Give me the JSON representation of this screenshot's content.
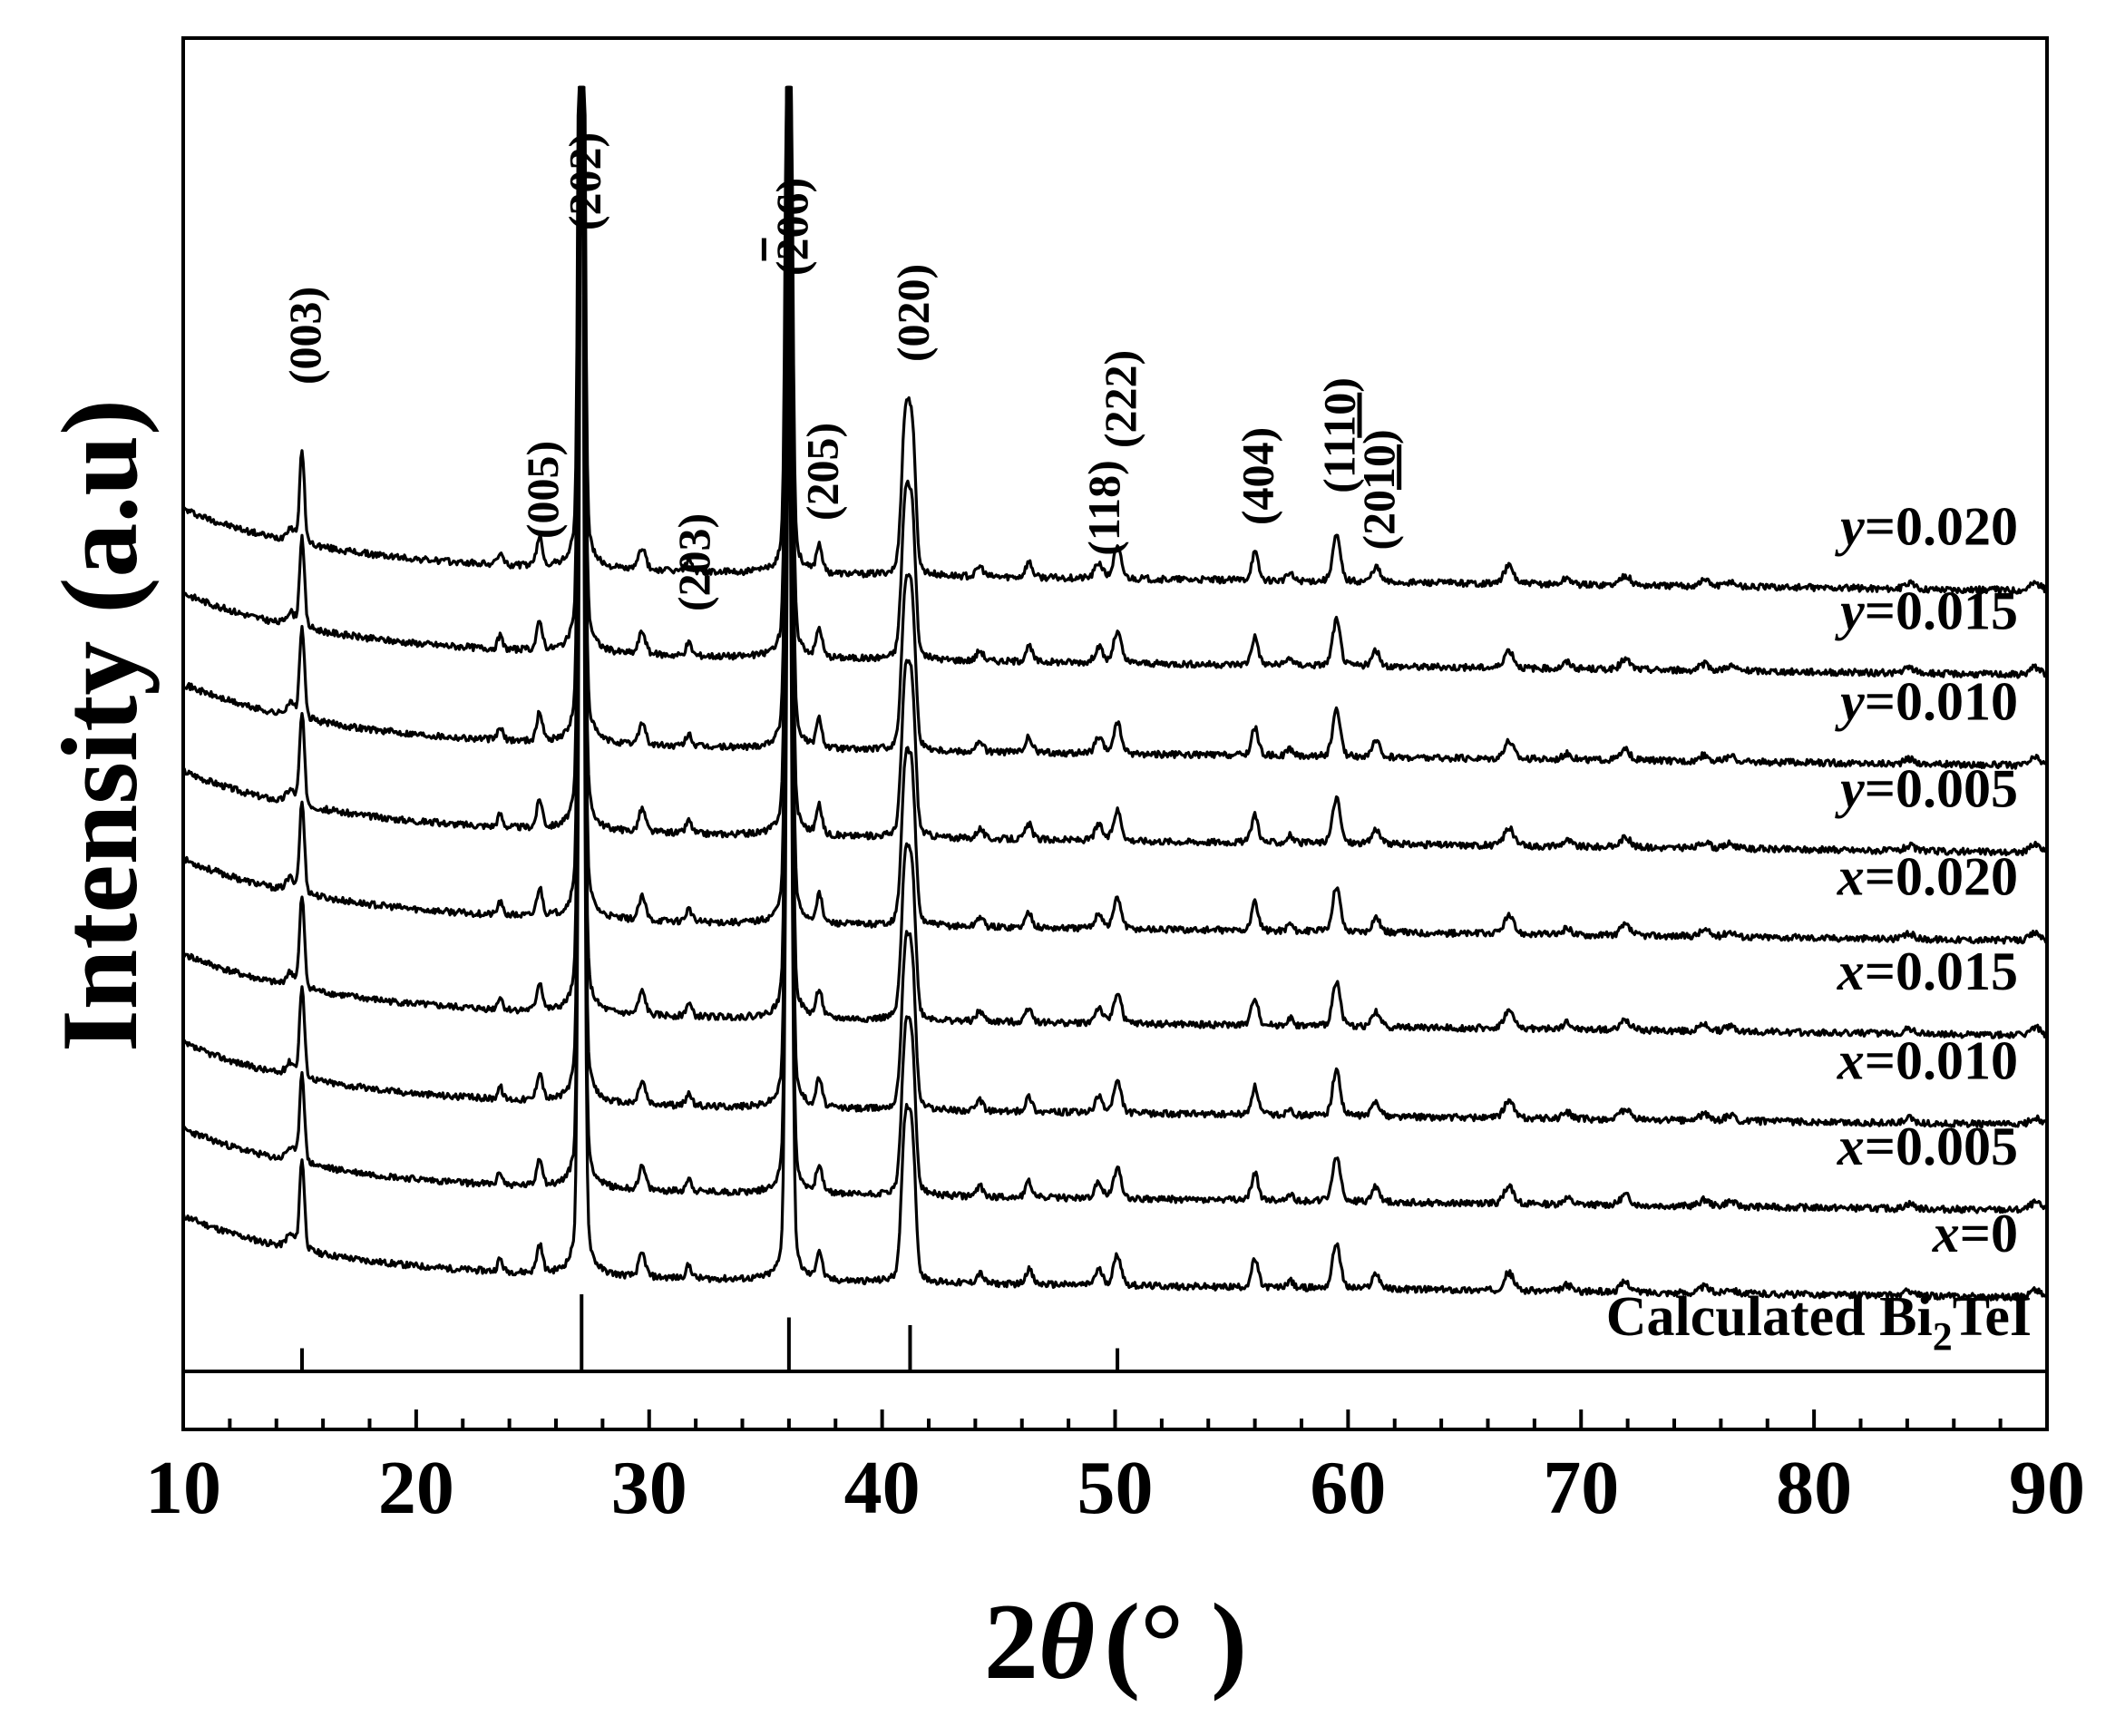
{
  "chart_data": {
    "type": "line",
    "title": "",
    "xlabel": {
      "prefix": "2",
      "symbol": "θ",
      "unit": "(° )"
    },
    "ylabel": "Intensity (a.u)",
    "xlim": [
      10,
      90
    ],
    "x_ticks": [
      "10",
      "20",
      "30",
      "40",
      "50",
      "60",
      "70",
      "80",
      "90"
    ],
    "y_ticks_shown": false,
    "grid": false,
    "reflections": [
      {
        "label": "(003)",
        "two_theta": 15.1
      },
      {
        "label": "(005)",
        "two_theta": 25.3
      },
      {
        "label": "(202)",
        "two_theta": 27.1
      },
      {
        "label": "(203)",
        "two_theta": 31.8
      },
      {
        "label": "(205)",
        "two_theta": 37.3
      },
      {
        "label": "(",
        "overbar": "2",
        "rest": "06)",
        "two_theta": 36.0
      },
      {
        "label": "(020)",
        "two_theta": 41.2
      },
      {
        "label": "(118)",
        "two_theta": 49.4
      },
      {
        "label": "(222)",
        "two_theta": 50.1
      },
      {
        "label": "(404)",
        "two_theta": 56.0
      },
      {
        "label": "(11",
        "underbar": "10",
        "rest": ")",
        "two_theta": 59.5
      },
      {
        "label": "(20",
        "underbar": "10",
        "rest": ")",
        "two_theta": 61.2
      }
    ],
    "reference": {
      "name_prefix": "Calculated Bi",
      "subscript": "2",
      "name_suffix": "TeI",
      "sticks": [
        {
          "two_theta": 15.1,
          "rel_intensity": 0.3
        },
        {
          "two_theta": 27.1,
          "rel_intensity": 1.0
        },
        {
          "two_theta": 36.0,
          "rel_intensity": 0.7
        },
        {
          "two_theta": 41.2,
          "rel_intensity": 0.6
        },
        {
          "two_theta": 50.1,
          "rel_intensity": 0.3
        }
      ]
    },
    "series": [
      {
        "var": "x",
        "value": "=0",
        "baseline": 0.075,
        "seed": 11
      },
      {
        "var": "x",
        "value": "=0.005",
        "baseline": 0.142,
        "seed": 23
      },
      {
        "var": "x",
        "value": "=0.010",
        "baseline": 0.208,
        "seed": 37
      },
      {
        "var": "x",
        "value": "=0.015",
        "baseline": 0.277,
        "seed": 41
      },
      {
        "var": "x",
        "value": "=0.020",
        "baseline": 0.35,
        "seed": 53
      },
      {
        "var": "y",
        "value": "=0.005",
        "baseline": 0.418,
        "seed": 67
      },
      {
        "var": "y",
        "value": "=0.010",
        "baseline": 0.485,
        "seed": 71
      },
      {
        "var": "y",
        "value": "=0.015",
        "baseline": 0.555,
        "seed": 83
      },
      {
        "var": "y",
        "value": "=0.020",
        "baseline": 0.62,
        "seed": 97
      }
    ],
    "peak_profile": [
      {
        "two_theta": 14.6,
        "height": 0.01,
        "width": 0.18
      },
      {
        "two_theta": 15.1,
        "height": 0.072,
        "width": 0.1
      },
      {
        "two_theta": 23.6,
        "height": 0.01,
        "width": 0.1
      },
      {
        "two_theta": 25.3,
        "height": 0.022,
        "width": 0.12
      },
      {
        "two_theta": 27.1,
        "height": 1.0,
        "width": 0.1
      },
      {
        "two_theta": 29.7,
        "height": 0.018,
        "width": 0.14
      },
      {
        "two_theta": 31.7,
        "height": 0.01,
        "width": 0.12
      },
      {
        "two_theta": 36.0,
        "height": 0.72,
        "width": 0.11
      },
      {
        "two_theta": 37.3,
        "height": 0.022,
        "width": 0.12
      },
      {
        "two_theta": 41.0,
        "height": 0.12,
        "width": 0.16
      },
      {
        "two_theta": 41.3,
        "height": 0.1,
        "width": 0.14
      },
      {
        "two_theta": 44.2,
        "height": 0.008,
        "width": 0.14
      },
      {
        "two_theta": 46.3,
        "height": 0.012,
        "width": 0.14
      },
      {
        "two_theta": 49.3,
        "height": 0.012,
        "width": 0.16
      },
      {
        "two_theta": 50.1,
        "height": 0.024,
        "width": 0.16
      },
      {
        "two_theta": 56.0,
        "height": 0.022,
        "width": 0.14
      },
      {
        "two_theta": 57.5,
        "height": 0.006,
        "width": 0.12
      },
      {
        "two_theta": 59.5,
        "height": 0.036,
        "width": 0.16
      },
      {
        "two_theta": 61.2,
        "height": 0.012,
        "width": 0.16
      },
      {
        "two_theta": 66.9,
        "height": 0.014,
        "width": 0.2
      },
      {
        "two_theta": 69.4,
        "height": 0.005,
        "width": 0.18
      },
      {
        "two_theta": 71.9,
        "height": 0.008,
        "width": 0.2
      },
      {
        "two_theta": 75.3,
        "height": 0.005,
        "width": 0.2
      },
      {
        "two_theta": 76.4,
        "height": 0.004,
        "width": 0.2
      },
      {
        "two_theta": 84.1,
        "height": 0.004,
        "width": 0.2
      },
      {
        "two_theta": 89.5,
        "height": 0.006,
        "width": 0.22
      }
    ]
  }
}
